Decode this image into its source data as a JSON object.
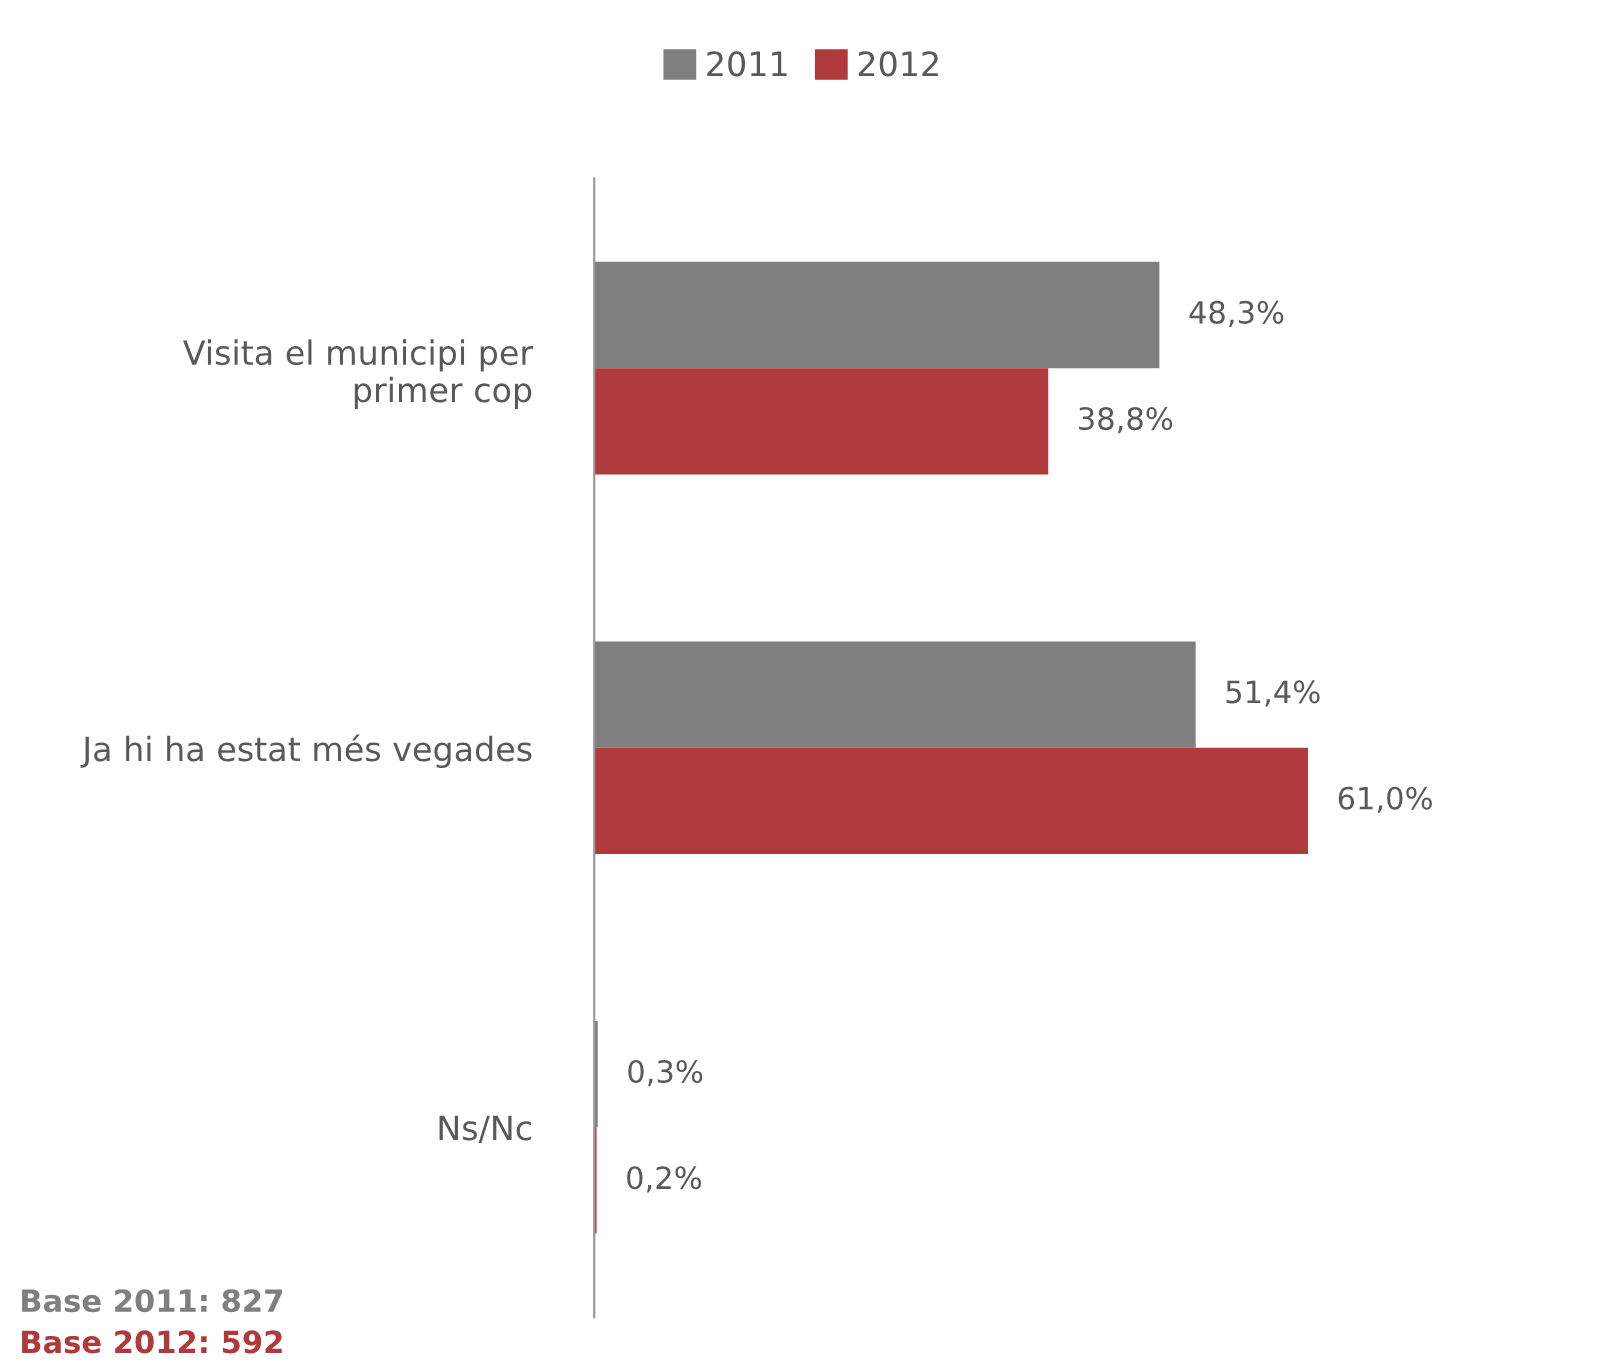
{
  "chart_data": {
    "type": "bar",
    "orientation": "horizontal",
    "categories": [
      "Visita el municipi per\nprimer cop",
      "Ja hi ha estat més vegades",
      "Ns/Nc"
    ],
    "series": [
      {
        "name": "2011",
        "color": "#7f7f7f",
        "values": [
          48.3,
          51.4,
          0.3
        ],
        "value_labels": [
          "48,3%",
          "51,4%",
          "0,3%"
        ]
      },
      {
        "name": "2012",
        "color": "#b0393b",
        "values": [
          38.8,
          61.0,
          0.2
        ],
        "value_labels": [
          "38,8%",
          "61,0%",
          "0,2%"
        ]
      }
    ],
    "legend": "top",
    "grid": false,
    "annotations": [
      "Base 2011: 827",
      "Base 2012: 592"
    ]
  }
}
